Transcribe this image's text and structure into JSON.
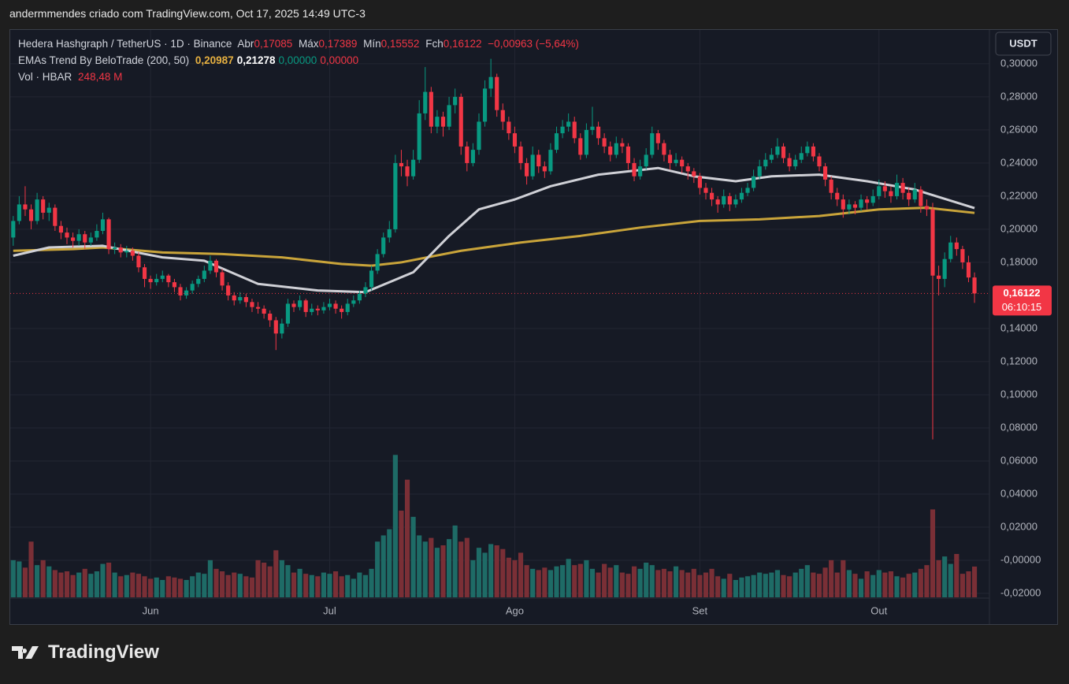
{
  "header": {
    "attribution": "andermmendes criado com TradingView.com, Oct 17, 2025 14:49 UTC-3"
  },
  "chart_data": {
    "type": "candlestick",
    "legend": {
      "symbol": "Hedera Hashgraph / TetherUS · 1D · Binance",
      "open_label": "Abr",
      "open": "0,17085",
      "high_label": "Máx",
      "high": "0,17389",
      "low_label": "Mín",
      "low": "0,15552",
      "close_label": "Fch",
      "close": "0,16122",
      "change": "−0,00963 (−5,64%)",
      "indicator": "EMAs Trend By BeloTrade (200, 50)",
      "indicator_values": [
        "0,20987",
        "0,21278",
        "0,00000",
        "0,00000"
      ],
      "indicator_colors": [
        "#e6b040",
        "#ffffff",
        "#089981",
        "#f23645"
      ],
      "volume": "Vol · HBAR",
      "volume_value": "248,48 M"
    },
    "currency": "USDT",
    "price_tag": {
      "label": "0,16122",
      "countdown": "06:10:15",
      "color": "#f23645"
    },
    "colors": {
      "up": "#089981",
      "down": "#f23645",
      "volume_up": "#1e6b66",
      "volume_down": "#7a2f36"
    },
    "ohlc": [
      [
        0.195,
        0.208,
        0.19,
        0.205
      ],
      [
        0.205,
        0.22,
        0.203,
        0.215
      ],
      [
        0.215,
        0.226,
        0.208,
        0.212
      ],
      [
        0.212,
        0.215,
        0.2,
        0.205
      ],
      [
        0.205,
        0.222,
        0.203,
        0.218
      ],
      [
        0.218,
        0.22,
        0.206,
        0.21
      ],
      [
        0.21,
        0.216,
        0.205,
        0.213
      ],
      [
        0.213,
        0.215,
        0.199,
        0.202
      ],
      [
        0.202,
        0.205,
        0.194,
        0.198
      ],
      [
        0.198,
        0.201,
        0.191,
        0.195
      ],
      [
        0.195,
        0.198,
        0.189,
        0.193
      ],
      [
        0.193,
        0.2,
        0.19,
        0.197
      ],
      [
        0.197,
        0.199,
        0.188,
        0.192
      ],
      [
        0.192,
        0.198,
        0.19,
        0.195
      ],
      [
        0.195,
        0.203,
        0.193,
        0.199
      ],
      [
        0.199,
        0.21,
        0.197,
        0.206
      ],
      [
        0.206,
        0.207,
        0.185,
        0.188
      ],
      [
        0.188,
        0.192,
        0.185,
        0.189
      ],
      [
        0.189,
        0.191,
        0.183,
        0.186
      ],
      [
        0.186,
        0.19,
        0.183,
        0.187
      ],
      [
        0.187,
        0.189,
        0.181,
        0.184
      ],
      [
        0.184,
        0.186,
        0.174,
        0.177
      ],
      [
        0.177,
        0.179,
        0.165,
        0.17
      ],
      [
        0.17,
        0.172,
        0.164,
        0.168
      ],
      [
        0.168,
        0.173,
        0.166,
        0.17
      ],
      [
        0.17,
        0.175,
        0.168,
        0.172
      ],
      [
        0.172,
        0.173,
        0.165,
        0.168
      ],
      [
        0.168,
        0.17,
        0.162,
        0.165
      ],
      [
        0.165,
        0.167,
        0.157,
        0.16
      ],
      [
        0.16,
        0.165,
        0.158,
        0.163
      ],
      [
        0.163,
        0.169,
        0.161,
        0.167
      ],
      [
        0.167,
        0.172,
        0.165,
        0.17
      ],
      [
        0.17,
        0.178,
        0.168,
        0.175
      ],
      [
        0.175,
        0.184,
        0.173,
        0.181
      ],
      [
        0.181,
        0.182,
        0.171,
        0.174
      ],
      [
        0.174,
        0.176,
        0.163,
        0.166
      ],
      [
        0.166,
        0.168,
        0.157,
        0.16
      ],
      [
        0.16,
        0.162,
        0.154,
        0.157
      ],
      [
        0.157,
        0.162,
        0.155,
        0.159
      ],
      [
        0.159,
        0.161,
        0.153,
        0.156
      ],
      [
        0.156,
        0.158,
        0.15,
        0.153
      ],
      [
        0.153,
        0.156,
        0.149,
        0.152
      ],
      [
        0.152,
        0.154,
        0.146,
        0.149
      ],
      [
        0.149,
        0.151,
        0.141,
        0.145
      ],
      [
        0.145,
        0.147,
        0.127,
        0.137
      ],
      [
        0.137,
        0.146,
        0.134,
        0.143
      ],
      [
        0.143,
        0.158,
        0.141,
        0.155
      ],
      [
        0.155,
        0.157,
        0.15,
        0.153
      ],
      [
        0.153,
        0.16,
        0.151,
        0.157
      ],
      [
        0.157,
        0.158,
        0.147,
        0.15
      ],
      [
        0.15,
        0.155,
        0.148,
        0.152
      ],
      [
        0.152,
        0.154,
        0.148,
        0.151
      ],
      [
        0.151,
        0.156,
        0.149,
        0.153
      ],
      [
        0.153,
        0.158,
        0.151,
        0.155
      ],
      [
        0.155,
        0.157,
        0.149,
        0.152
      ],
      [
        0.152,
        0.154,
        0.146,
        0.15
      ],
      [
        0.15,
        0.158,
        0.148,
        0.155
      ],
      [
        0.155,
        0.16,
        0.153,
        0.157
      ],
      [
        0.157,
        0.163,
        0.155,
        0.161
      ],
      [
        0.161,
        0.168,
        0.159,
        0.165
      ],
      [
        0.165,
        0.178,
        0.163,
        0.175
      ],
      [
        0.175,
        0.188,
        0.173,
        0.185
      ],
      [
        0.185,
        0.198,
        0.183,
        0.195
      ],
      [
        0.195,
        0.205,
        0.192,
        0.2
      ],
      [
        0.2,
        0.245,
        0.198,
        0.24
      ],
      [
        0.24,
        0.248,
        0.232,
        0.238
      ],
      [
        0.238,
        0.242,
        0.226,
        0.232
      ],
      [
        0.232,
        0.248,
        0.23,
        0.242
      ],
      [
        0.242,
        0.278,
        0.24,
        0.27
      ],
      [
        0.27,
        0.298,
        0.266,
        0.283
      ],
      [
        0.283,
        0.286,
        0.258,
        0.262
      ],
      [
        0.262,
        0.272,
        0.258,
        0.268
      ],
      [
        0.268,
        0.271,
        0.256,
        0.262
      ],
      [
        0.262,
        0.28,
        0.26,
        0.275
      ],
      [
        0.275,
        0.285,
        0.27,
        0.28
      ],
      [
        0.28,
        0.282,
        0.245,
        0.25
      ],
      [
        0.25,
        0.253,
        0.235,
        0.24
      ],
      [
        0.24,
        0.252,
        0.238,
        0.248
      ],
      [
        0.248,
        0.27,
        0.245,
        0.265
      ],
      [
        0.265,
        0.29,
        0.262,
        0.285
      ],
      [
        0.285,
        0.303,
        0.28,
        0.292
      ],
      [
        0.292,
        0.294,
        0.268,
        0.272
      ],
      [
        0.272,
        0.276,
        0.26,
        0.265
      ],
      [
        0.265,
        0.268,
        0.254,
        0.258
      ],
      [
        0.258,
        0.262,
        0.246,
        0.25
      ],
      [
        0.25,
        0.253,
        0.236,
        0.24
      ],
      [
        0.24,
        0.243,
        0.227,
        0.232
      ],
      [
        0.232,
        0.25,
        0.23,
        0.245
      ],
      [
        0.245,
        0.248,
        0.234,
        0.238
      ],
      [
        0.238,
        0.241,
        0.231,
        0.235
      ],
      [
        0.235,
        0.252,
        0.233,
        0.248
      ],
      [
        0.248,
        0.262,
        0.246,
        0.258
      ],
      [
        0.258,
        0.266,
        0.255,
        0.262
      ],
      [
        0.262,
        0.27,
        0.259,
        0.265
      ],
      [
        0.265,
        0.268,
        0.252,
        0.255
      ],
      [
        0.255,
        0.258,
        0.242,
        0.245
      ],
      [
        0.245,
        0.264,
        0.243,
        0.26
      ],
      [
        0.26,
        0.274,
        0.257,
        0.262
      ],
      [
        0.262,
        0.265,
        0.251,
        0.255
      ],
      [
        0.255,
        0.258,
        0.246,
        0.25
      ],
      [
        0.25,
        0.253,
        0.241,
        0.245
      ],
      [
        0.245,
        0.256,
        0.243,
        0.252
      ],
      [
        0.252,
        0.255,
        0.246,
        0.25
      ],
      [
        0.25,
        0.252,
        0.236,
        0.24
      ],
      [
        0.24,
        0.243,
        0.229,
        0.232
      ],
      [
        0.232,
        0.242,
        0.23,
        0.238
      ],
      [
        0.238,
        0.249,
        0.236,
        0.245
      ],
      [
        0.245,
        0.262,
        0.243,
        0.258
      ],
      [
        0.258,
        0.26,
        0.248,
        0.252
      ],
      [
        0.252,
        0.254,
        0.241,
        0.245
      ],
      [
        0.245,
        0.248,
        0.236,
        0.24
      ],
      [
        0.24,
        0.246,
        0.238,
        0.242
      ],
      [
        0.242,
        0.244,
        0.234,
        0.238
      ],
      [
        0.238,
        0.24,
        0.23,
        0.235
      ],
      [
        0.235,
        0.237,
        0.228,
        0.232
      ],
      [
        0.232,
        0.234,
        0.221,
        0.225
      ],
      [
        0.225,
        0.228,
        0.218,
        0.222
      ],
      [
        0.222,
        0.225,
        0.214,
        0.218
      ],
      [
        0.218,
        0.22,
        0.21,
        0.215
      ],
      [
        0.215,
        0.224,
        0.213,
        0.22
      ],
      [
        0.22,
        0.222,
        0.211,
        0.215
      ],
      [
        0.215,
        0.221,
        0.213,
        0.218
      ],
      [
        0.218,
        0.225,
        0.216,
        0.222
      ],
      [
        0.222,
        0.228,
        0.22,
        0.225
      ],
      [
        0.225,
        0.236,
        0.223,
        0.232
      ],
      [
        0.232,
        0.242,
        0.23,
        0.238
      ],
      [
        0.238,
        0.246,
        0.236,
        0.242
      ],
      [
        0.242,
        0.249,
        0.24,
        0.245
      ],
      [
        0.245,
        0.255,
        0.243,
        0.25
      ],
      [
        0.25,
        0.252,
        0.24,
        0.243
      ],
      [
        0.243,
        0.246,
        0.235,
        0.238
      ],
      [
        0.238,
        0.245,
        0.236,
        0.242
      ],
      [
        0.242,
        0.25,
        0.24,
        0.246
      ],
      [
        0.246,
        0.253,
        0.244,
        0.25
      ],
      [
        0.25,
        0.252,
        0.241,
        0.244
      ],
      [
        0.244,
        0.246,
        0.235,
        0.238
      ],
      [
        0.238,
        0.24,
        0.226,
        0.23
      ],
      [
        0.23,
        0.232,
        0.218,
        0.222
      ],
      [
        0.222,
        0.225,
        0.214,
        0.218
      ],
      [
        0.218,
        0.221,
        0.207,
        0.212
      ],
      [
        0.212,
        0.218,
        0.209,
        0.215
      ],
      [
        0.215,
        0.217,
        0.209,
        0.213
      ],
      [
        0.213,
        0.221,
        0.211,
        0.218
      ],
      [
        0.218,
        0.22,
        0.212,
        0.216
      ],
      [
        0.216,
        0.224,
        0.214,
        0.22
      ],
      [
        0.22,
        0.23,
        0.218,
        0.226
      ],
      [
        0.226,
        0.229,
        0.219,
        0.223
      ],
      [
        0.223,
        0.226,
        0.216,
        0.22
      ],
      [
        0.22,
        0.233,
        0.218,
        0.228
      ],
      [
        0.228,
        0.231,
        0.218,
        0.222
      ],
      [
        0.222,
        0.225,
        0.214,
        0.218
      ],
      [
        0.218,
        0.228,
        0.216,
        0.224
      ],
      [
        0.224,
        0.226,
        0.21,
        0.214
      ],
      [
        0.214,
        0.218,
        0.208,
        0.212
      ],
      [
        0.212,
        0.216,
        0.073,
        0.172
      ],
      [
        0.172,
        0.178,
        0.16,
        0.17
      ],
      [
        0.17,
        0.186,
        0.165,
        0.182
      ],
      [
        0.182,
        0.196,
        0.18,
        0.192
      ],
      [
        0.192,
        0.195,
        0.184,
        0.188
      ],
      [
        0.188,
        0.19,
        0.176,
        0.18
      ],
      [
        0.18,
        0.184,
        0.168,
        0.17085
      ],
      [
        0.17085,
        0.17389,
        0.15552,
        0.16122
      ]
    ],
    "volume": [
      300,
      290,
      240,
      450,
      260,
      300,
      250,
      220,
      200,
      210,
      180,
      200,
      230,
      190,
      210,
      270,
      280,
      200,
      170,
      180,
      200,
      190,
      170,
      150,
      160,
      140,
      170,
      160,
      150,
      140,
      170,
      200,
      190,
      300,
      230,
      210,
      180,
      200,
      190,
      170,
      160,
      300,
      280,
      250,
      380,
      300,
      260,
      200,
      230,
      190,
      180,
      170,
      200,
      190,
      210,
      170,
      180,
      150,
      200,
      180,
      230,
      450,
      500,
      550,
      1150,
      700,
      950,
      650,
      500,
      450,
      480,
      400,
      420,
      470,
      580,
      450,
      480,
      300,
      400,
      360,
      430,
      420,
      390,
      320,
      300,
      360,
      260,
      230,
      220,
      240,
      220,
      250,
      260,
      310,
      260,
      270,
      300,
      230,
      200,
      270,
      240,
      260,
      200,
      190,
      250,
      230,
      280,
      260,
      220,
      230,
      210,
      250,
      220,
      200,
      230,
      180,
      200,
      230,
      170,
      150,
      190,
      140,
      160,
      170,
      180,
      200,
      190,
      200,
      220,
      180,
      170,
      200,
      230,
      260,
      200,
      190,
      240,
      300,
      200,
      300,
      220,
      190,
      150,
      210,
      180,
      220,
      200,
      210,
      170,
      160,
      190,
      200,
      230,
      260,
      710,
      300,
      330,
      270,
      350,
      190,
      210,
      248.48
    ],
    "volume_lim": [
      0,
      1400
    ],
    "series": [
      {
        "color": "#c9a43a",
        "x": [
          0,
          10,
          15,
          25,
          35,
          45,
          55,
          60,
          65,
          75,
          85,
          95,
          105,
          115,
          125,
          135,
          145,
          153,
          161
        ],
        "values": [
          0.187,
          0.188,
          0.189,
          0.186,
          0.185,
          0.183,
          0.179,
          0.178,
          0.18,
          0.187,
          0.192,
          0.196,
          0.201,
          0.205,
          0.206,
          0.208,
          0.212,
          0.213,
          0.20987
        ]
      },
      {
        "color": "#cfd0d6",
        "x": [
          0,
          6,
          15,
          25,
          32,
          41,
          51,
          59,
          67,
          73,
          78,
          84,
          90,
          98,
          108,
          114,
          121,
          127,
          135,
          143,
          151,
          161
        ],
        "values": [
          0.184,
          0.189,
          0.19,
          0.183,
          0.181,
          0.167,
          0.163,
          0.162,
          0.174,
          0.196,
          0.212,
          0.218,
          0.226,
          0.233,
          0.237,
          0.232,
          0.229,
          0.232,
          0.233,
          0.229,
          0.224,
          0.21278
        ]
      }
    ],
    "xlim": [
      -0.5,
      163.5
    ],
    "xticks": [
      {
        "value": 23,
        "label": "Jun"
      },
      {
        "value": 53,
        "label": "Jul"
      },
      {
        "value": 84,
        "label": "Ago"
      },
      {
        "value": 115,
        "label": "Set"
      },
      {
        "value": 145,
        "label": "Out"
      }
    ],
    "ylim": [
      -0.0224,
      0.319
    ],
    "yticks": [
      {
        "value": 0.3,
        "label": "0,30000"
      },
      {
        "value": 0.28,
        "label": "0,28000"
      },
      {
        "value": 0.26,
        "label": "0,26000"
      },
      {
        "value": 0.24,
        "label": "0,24000"
      },
      {
        "value": 0.22,
        "label": "0,22000"
      },
      {
        "value": 0.2,
        "label": "0,20000"
      },
      {
        "value": 0.18,
        "label": "0,18000"
      },
      {
        "value": 0.14,
        "label": "0,14000"
      },
      {
        "value": 0.12,
        "label": "0,12000"
      },
      {
        "value": 0.1,
        "label": "0,10000"
      },
      {
        "value": 0.08,
        "label": "0,08000"
      },
      {
        "value": 0.06,
        "label": "0,06000"
      },
      {
        "value": 0.04,
        "label": "0,04000"
      },
      {
        "value": 0.02,
        "label": "0,02000"
      },
      {
        "value": 0,
        "label": "-0,00000"
      },
      {
        "value": -0.02,
        "label": "-0,02000"
      }
    ],
    "grid": true
  },
  "footer": {
    "logo": "TradingView"
  }
}
